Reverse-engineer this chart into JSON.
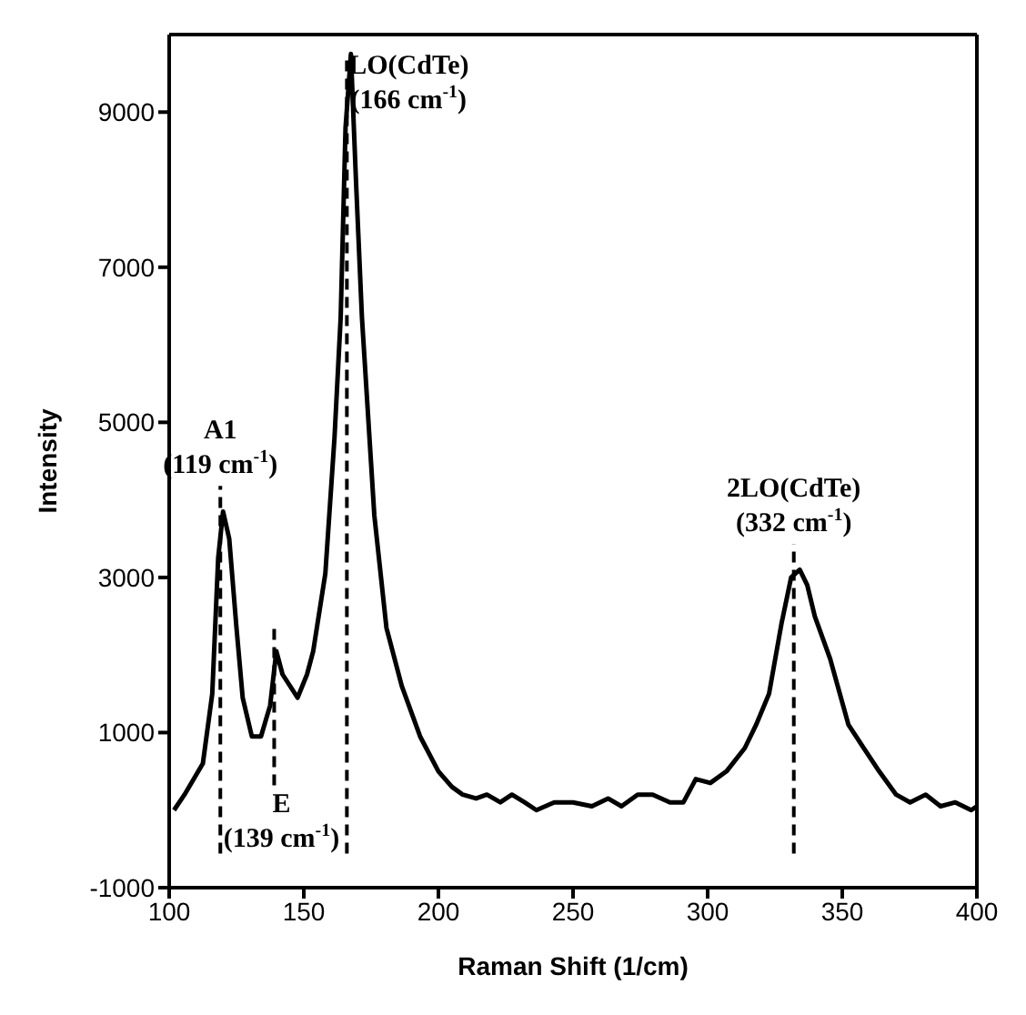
{
  "chart_data": {
    "type": "line",
    "xlabel": "Raman Shift (1/cm)",
    "ylabel": "Intensity",
    "xlim": [
      100,
      400
    ],
    "xticks": [
      100,
      150,
      200,
      250,
      300,
      350,
      400
    ],
    "ylim": [
      -1000,
      10000
    ],
    "yticks": [
      -1000,
      1000,
      3000,
      5000,
      7000,
      9000
    ],
    "grid": false,
    "legend": false,
    "marker": "none",
    "line_style": "solid",
    "series": [
      {
        "color": "#000000",
        "x": [
          101.8,
          105.7,
          112.5,
          116,
          118.2,
          120,
          122.3,
          125,
          127.3,
          130.7,
          134.1,
          137.5,
          139.8,
          142.1,
          147.7,
          151.2,
          153.5,
          158,
          161.4,
          163.7,
          165.5,
          167.5,
          169.4,
          171.6,
          176.2,
          180.7,
          186.4,
          193.2,
          200,
          205,
          209,
          214,
          218,
          223,
          227.3,
          232,
          236.4,
          243,
          250,
          257,
          263,
          268,
          274,
          279.6,
          286,
          291,
          295.6,
          301,
          307,
          313.8,
          318,
          322.8,
          327.4,
          331,
          334.2,
          337,
          339.8,
          345.5,
          352.3,
          358,
          363.7,
          370,
          375.2,
          381,
          386.5,
          392,
          397.9,
          400
        ],
        "values": [
          0,
          200,
          600,
          1500,
          3250,
          3850,
          3500,
          2350,
          1450,
          950,
          950,
          1350,
          2050,
          1750,
          1450,
          1750,
          2050,
          3050,
          4800,
          6350,
          8800,
          9750,
          8100,
          6350,
          3800,
          2350,
          1600,
          950,
          500,
          300,
          200,
          150,
          200,
          100,
          200,
          100,
          0,
          100,
          100,
          50,
          150,
          50,
          200,
          200,
          100,
          100,
          400,
          350,
          500,
          800,
          1100,
          1500,
          2400,
          3000,
          3100,
          2900,
          2500,
          1950,
          1100,
          800,
          500,
          200,
          100,
          200,
          50,
          100,
          0,
          50
        ]
      }
    ],
    "ref_lines": [
      {
        "axis": "x",
        "value": 119,
        "line_style": "dashed",
        "color": "#000000",
        "label": "A1\n(119 cm$^{-1}$)"
      },
      {
        "axis": "x",
        "value": 139,
        "line_style": "dashed",
        "color": "#000000",
        "label": "E\n(139 cm$^{-1}$)"
      },
      {
        "axis": "x",
        "value": 166,
        "line_style": "dashed",
        "color": "#000000",
        "label": "LO(CdTe)\n(166 cm$^{-1}$)"
      },
      {
        "axis": "x",
        "value": 332,
        "line_style": "dashed",
        "color": "#000000",
        "label": "2LO(CdTe)\n(332 cm$^{-1}$)"
      }
    ]
  }
}
